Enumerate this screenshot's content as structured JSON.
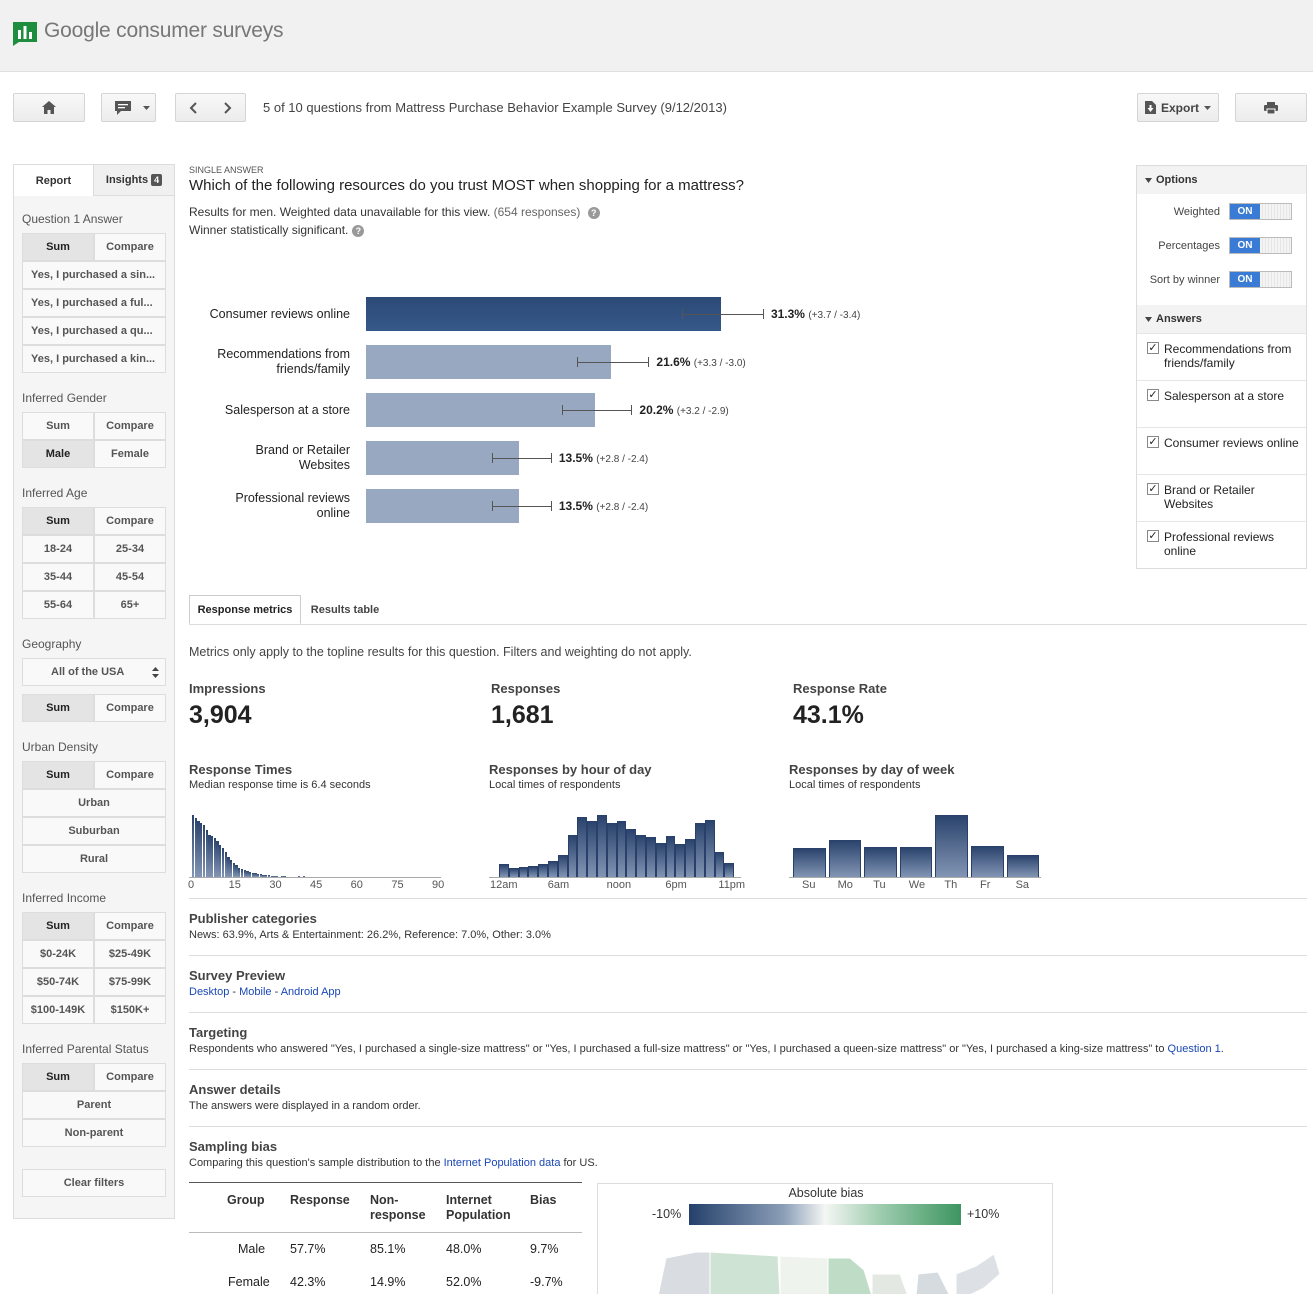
{
  "header": {
    "brand_google": "Google",
    "brand_product": " consumer surveys",
    "logo_icon": "bar-chart-flag-icon"
  },
  "toolbar": {
    "home_icon": "home-icon",
    "comment_icon": "comment-icon",
    "dropdown_icon": "chevron-down-icon",
    "prev_icon": "chevron-left-icon",
    "next_icon": "chevron-right-icon",
    "nav_text": "5 of 10 questions from Mattress Purchase Behavior Example Survey (9/12/2013)",
    "export_label": "Export",
    "print_icon": "print-icon"
  },
  "left_panel": {
    "tab_report": "Report",
    "tab_insights": "Insights",
    "insights_count": "4",
    "sum": "Sum",
    "compare": "Compare",
    "q1_label": "Question 1 Answer",
    "q1_items": [
      "Yes, I purchased a sin...",
      "Yes, I purchased a ful...",
      "Yes, I purchased a qu...",
      "Yes, I purchased a kin..."
    ],
    "gender_label": "Inferred Gender",
    "gender_male": "Male",
    "gender_female": "Female",
    "age_label": "Inferred Age",
    "age_items": [
      "18-24",
      "25-34",
      "35-44",
      "45-54",
      "55-64",
      "65+"
    ],
    "geo_label": "Geography",
    "geo_value": "All of the USA",
    "urban_label": "Urban Density",
    "urban_items": [
      "Urban",
      "Suburban",
      "Rural"
    ],
    "income_label": "Inferred Income",
    "income_items": [
      "$0-24K",
      "$25-49K",
      "$50-74K",
      "$75-99K",
      "$100-149K",
      "$150K+"
    ],
    "parental_label": "Inferred Parental Status",
    "parental_items": [
      "Parent",
      "Non-parent"
    ],
    "clear_filters": "Clear filters"
  },
  "question": {
    "type": "SINGLE ANSWER",
    "title": "Which of the following resources do you trust MOST when shopping for a mattress?",
    "results_text": "Results for men. Weighted data unavailable for this view.",
    "responses": "(654 responses)",
    "winner_text": "Winner statistically significant.",
    "help_glyph": "?"
  },
  "chart_data": {
    "type": "bar",
    "orientation": "horizontal",
    "categories": [
      "Consumer reviews online",
      "Recommendations from friends/family",
      "Salesperson at a store",
      "Brand or Retailer Websites",
      "Professional reviews online"
    ],
    "labels": [
      [
        "Consumer reviews online"
      ],
      [
        "Recommendations from",
        "friends/family"
      ],
      [
        "Salesperson at a store"
      ],
      [
        "Brand or Retailer",
        "Websites"
      ],
      [
        "Professional reviews",
        "online"
      ]
    ],
    "values": [
      31.3,
      21.6,
      20.2,
      13.5,
      13.5
    ],
    "value_labels": [
      "31.3%",
      "21.6%",
      "20.2%",
      "13.5%",
      "13.5%"
    ],
    "error_labels": [
      "(+3.7 / -3.4)",
      "(+3.3 / -3.0)",
      "(+3.2 / -2.9)",
      "(+2.8 / -2.4)",
      "(+2.8 / -2.4)"
    ],
    "errors_plus": [
      3.7,
      3.3,
      3.2,
      2.8,
      2.8
    ],
    "errors_minus": [
      3.4,
      3.0,
      2.9,
      2.4,
      2.4
    ],
    "winner_color": "#2c4a76",
    "other_color": "#98a8c0"
  },
  "options": {
    "title": "Options",
    "weighted": "Weighted",
    "percentages": "Percentages",
    "sort_by_winner": "Sort by winner",
    "on": "ON",
    "answers_title": "Answers",
    "answers": [
      "Recommendations from friends/family",
      "Salesperson at a store",
      "Consumer reviews online",
      "Brand or Retailer Websites",
      "Professional reviews online"
    ],
    "check_glyph": "✓"
  },
  "metrics": {
    "tab_response_metrics": "Response metrics",
    "tab_results_table": "Results table",
    "note": "Metrics only apply to the topline results for this question. Filters and weighting do not apply.",
    "impressions_label": "Impressions",
    "impressions_value": "3,904",
    "responses_label": "Responses",
    "responses_value": "1,681",
    "rate_label": "Response Rate",
    "rate_value": "43.1%",
    "times_title": "Response Times",
    "times_sub": "Median response time is 6.4 seconds",
    "times_ticks": [
      "0",
      "15",
      "30",
      "45",
      "60",
      "75",
      "90"
    ],
    "times_values": [
      63,
      60,
      57,
      55,
      53,
      48,
      43,
      42,
      40,
      37,
      33,
      29,
      25,
      20,
      17,
      14,
      12,
      9,
      8,
      7,
      6,
      5,
      4,
      4,
      3,
      3,
      2,
      2,
      2,
      1,
      1,
      1,
      0,
      1,
      1,
      0,
      0,
      0,
      0,
      1,
      0,
      1,
      0,
      0,
      0,
      0,
      0,
      0,
      0,
      0,
      0,
      0,
      0,
      0,
      0,
      0,
      0,
      0,
      0,
      0,
      0,
      0,
      0,
      0,
      0,
      0,
      0,
      0,
      0,
      0,
      0,
      0,
      0,
      0,
      0,
      0,
      0,
      0,
      0,
      0,
      0,
      0,
      0,
      0,
      0,
      0,
      0,
      0,
      0,
      0
    ],
    "hour_title": "Responses by hour of day",
    "hour_sub": "Local times of respondents",
    "hour_ticks": [
      "12am",
      "6am",
      "noon",
      "6pm",
      "11pm"
    ],
    "hour_values": [
      11,
      8,
      9,
      10,
      11,
      14,
      19,
      37,
      52,
      49,
      54,
      47,
      49,
      42,
      37,
      35,
      30,
      36,
      29,
      33,
      47,
      50,
      22,
      12
    ],
    "week_title": "Responses by day of week",
    "week_sub": "Local times of respondents",
    "week_ticks": [
      "Su",
      "Mo",
      "Tu",
      "We",
      "Th",
      "Fr",
      "Sa"
    ],
    "week_values": [
      27,
      35,
      28,
      28,
      58,
      29,
      21
    ]
  },
  "sections": {
    "publisher_title": "Publisher categories",
    "publisher_text": "News: 63.9%, Arts & Entertainment: 26.2%, Reference: 7.0%, Other: 3.0%",
    "preview_title": "Survey Preview",
    "preview_desktop": "Desktop",
    "preview_sep": " - ",
    "preview_mobile": "Mobile",
    "preview_android": "Android App",
    "targeting_title": "Targeting",
    "targeting_text": "Respondents who answered \"Yes, I purchased a single-size mattress\" or \"Yes, I purchased a full-size mattress\" or \"Yes, I purchased a queen-size mattress\" or \"Yes, I purchased a king-size mattress\" to ",
    "targeting_link": "Question 1",
    "targeting_end": ".",
    "answer_details_title": "Answer details",
    "answer_details_text": "The answers were displayed in a random order.",
    "bias_title": "Sampling bias",
    "bias_text_pre": "Comparing this question's sample distribution to the ",
    "bias_link": "Internet Population data",
    "bias_text_post": " for US."
  },
  "bias_table": {
    "headers": [
      "Group",
      "Response",
      "Non-\nresponse",
      "Internet\nPopulation",
      "Bias"
    ],
    "rows": [
      [
        "Male",
        "57.7%",
        "85.1%",
        "48.0%",
        "9.7%"
      ],
      [
        "Female",
        "42.3%",
        "14.9%",
        "52.0%",
        "-9.7%"
      ]
    ]
  },
  "bias_map": {
    "title": "Absolute bias",
    "min_label": "-10%",
    "max_label": "+10%"
  }
}
